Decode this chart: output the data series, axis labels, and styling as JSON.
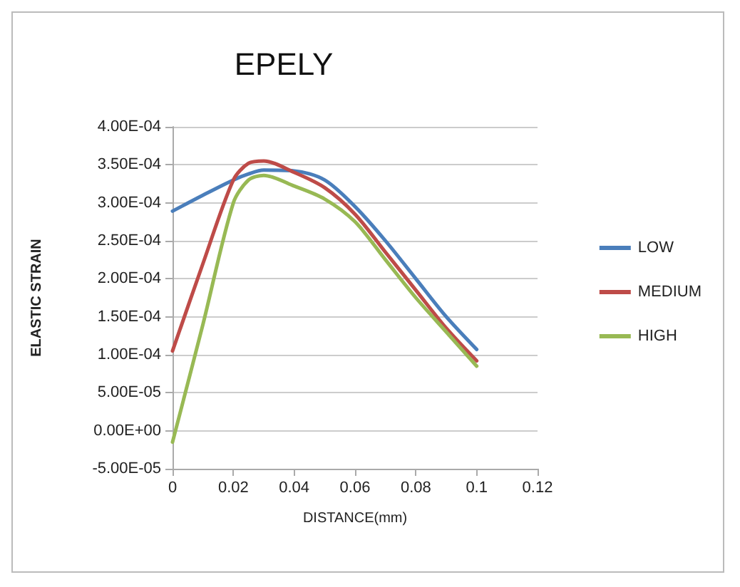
{
  "chart_data": {
    "type": "line",
    "title": "EPELY",
    "xlabel": "DISTANCE(mm)",
    "ylabel": "ELASTIC STRAIN",
    "x": [
      0,
      0.01,
      0.02,
      0.025,
      0.03,
      0.04,
      0.05,
      0.06,
      0.07,
      0.08,
      0.09,
      0.1
    ],
    "series": [
      {
        "name": "LOW",
        "color": "#4a7ebb",
        "values": [
          0.000289,
          0.00031,
          0.00033,
          0.000338,
          0.000343,
          0.000342,
          0.00033,
          0.000295,
          0.00025,
          0.0002,
          0.00015,
          0.000107
        ]
      },
      {
        "name": "MEDIUM",
        "color": "#be4b48",
        "values": [
          0.000105,
          0.00022,
          0.00033,
          0.000352,
          0.000355,
          0.00034,
          0.00032,
          0.000285,
          0.000235,
          0.000185,
          0.000135,
          9.2e-05
        ]
      },
      {
        "name": "HIGH",
        "color": "#98b954",
        "values": [
          -1.5e-05,
          0.00014,
          0.0003,
          0.00033,
          0.000336,
          0.000322,
          0.000305,
          0.000275,
          0.000225,
          0.000175,
          0.00013,
          8.5e-05
        ]
      }
    ],
    "xlim": [
      0,
      0.12
    ],
    "xticks": [
      0,
      0.02,
      0.04,
      0.06,
      0.08,
      0.1,
      0.12
    ],
    "ylim": [
      -5e-05,
      0.0004
    ],
    "yticks": [
      {
        "value": -5e-05,
        "label": "-5.00E-05"
      },
      {
        "value": 0,
        "label": "0.00E+00"
      },
      {
        "value": 5e-05,
        "label": "5.00E-05"
      },
      {
        "value": 0.0001,
        "label": "1.00E-04"
      },
      {
        "value": 0.00015,
        "label": "1.50E-04"
      },
      {
        "value": 0.0002,
        "label": "2.00E-04"
      },
      {
        "value": 0.00025,
        "label": "2.50E-04"
      },
      {
        "value": 0.0003,
        "label": "3.00E-04"
      },
      {
        "value": 0.00035,
        "label": "3.50E-04"
      },
      {
        "value": 0.0004,
        "label": "4.00E-04"
      }
    ],
    "grid": "y",
    "legend": "right",
    "marker": "none",
    "line_style": "solid"
  }
}
